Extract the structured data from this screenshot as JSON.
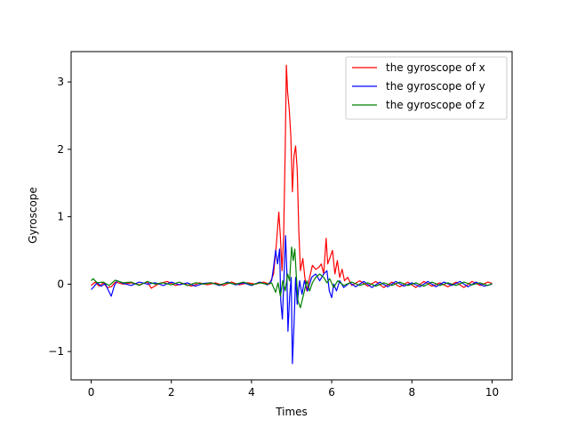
{
  "chart_data": {
    "type": "line",
    "title": "",
    "xlabel": "Times",
    "ylabel": "Gyroscope",
    "xlim": [
      -0.5,
      10.5
    ],
    "ylim": [
      -1.42,
      3.45
    ],
    "xticks": [
      0,
      2,
      4,
      6,
      8,
      10
    ],
    "xtick_labels": [
      "0",
      "2",
      "4",
      "6",
      "8",
      "10"
    ],
    "yticks": [
      -1,
      0,
      1,
      2,
      3
    ],
    "ytick_labels": [
      "−1",
      "0",
      "1",
      "2",
      "3"
    ],
    "grid": false,
    "legend_position": "top-right",
    "series": [
      {
        "name": "the gyroscope of x",
        "color": "#ff0000",
        "points": [
          [
            0.0,
            -0.02
          ],
          [
            0.1,
            0.03
          ],
          [
            0.2,
            -0.03
          ],
          [
            0.3,
            0.02
          ],
          [
            0.4,
            -0.05
          ],
          [
            0.5,
            -0.04
          ],
          [
            0.6,
            0.03
          ],
          [
            0.8,
            0.0
          ],
          [
            1.0,
            0.02
          ],
          [
            1.2,
            -0.01
          ],
          [
            1.4,
            0.03
          ],
          [
            1.5,
            -0.06
          ],
          [
            1.7,
            0.01
          ],
          [
            1.9,
            0.04
          ],
          [
            2.1,
            -0.02
          ],
          [
            2.3,
            0.01
          ],
          [
            2.5,
            -0.03
          ],
          [
            2.7,
            0.02
          ],
          [
            2.9,
            -0.01
          ],
          [
            3.1,
            0.02
          ],
          [
            3.3,
            -0.02
          ],
          [
            3.5,
            0.03
          ],
          [
            3.7,
            -0.01
          ],
          [
            3.9,
            0.02
          ],
          [
            4.1,
            0.0
          ],
          [
            4.3,
            0.03
          ],
          [
            4.45,
            0.0
          ],
          [
            4.55,
            0.15
          ],
          [
            4.62,
            0.6
          ],
          [
            4.68,
            1.07
          ],
          [
            4.72,
            0.7
          ],
          [
            4.76,
            0.2
          ],
          [
            4.8,
            0.7
          ],
          [
            4.84,
            2.0
          ],
          [
            4.87,
            3.25
          ],
          [
            4.9,
            2.85
          ],
          [
            4.94,
            2.6
          ],
          [
            4.98,
            2.2
          ],
          [
            5.02,
            1.37
          ],
          [
            5.06,
            1.9
          ],
          [
            5.1,
            2.05
          ],
          [
            5.14,
            1.7
          ],
          [
            5.18,
            0.8
          ],
          [
            5.22,
            0.2
          ],
          [
            5.28,
            0.38
          ],
          [
            5.33,
            0.1
          ],
          [
            5.38,
            -0.1
          ],
          [
            5.45,
            0.1
          ],
          [
            5.52,
            0.28
          ],
          [
            5.6,
            0.22
          ],
          [
            5.68,
            0.25
          ],
          [
            5.74,
            0.3
          ],
          [
            5.8,
            0.15
          ],
          [
            5.86,
            0.68
          ],
          [
            5.9,
            0.3
          ],
          [
            5.96,
            0.4
          ],
          [
            6.02,
            0.5
          ],
          [
            6.08,
            0.15
          ],
          [
            6.14,
            0.35
          ],
          [
            6.2,
            0.1
          ],
          [
            6.26,
            0.22
          ],
          [
            6.32,
            0.05
          ],
          [
            6.4,
            0.1
          ],
          [
            6.5,
            -0.02
          ],
          [
            6.7,
            0.05
          ],
          [
            6.9,
            -0.03
          ],
          [
            7.1,
            0.04
          ],
          [
            7.3,
            -0.05
          ],
          [
            7.5,
            0.03
          ],
          [
            7.7,
            -0.04
          ],
          [
            7.9,
            0.03
          ],
          [
            8.1,
            -0.05
          ],
          [
            8.3,
            0.04
          ],
          [
            8.5,
            -0.03
          ],
          [
            8.7,
            0.02
          ],
          [
            8.9,
            -0.04
          ],
          [
            9.1,
            0.03
          ],
          [
            9.3,
            -0.05
          ],
          [
            9.5,
            0.04
          ],
          [
            9.7,
            -0.02
          ],
          [
            9.9,
            0.03
          ],
          [
            10.0,
            0.01
          ]
        ]
      },
      {
        "name": "the gyroscope of y",
        "color": "#0000ff",
        "points": [
          [
            0.0,
            -0.08
          ],
          [
            0.05,
            -0.05
          ],
          [
            0.15,
            0.02
          ],
          [
            0.25,
            -0.03
          ],
          [
            0.35,
            0.01
          ],
          [
            0.42,
            -0.08
          ],
          [
            0.5,
            -0.18
          ],
          [
            0.58,
            -0.02
          ],
          [
            0.65,
            0.05
          ],
          [
            0.8,
            0.01
          ],
          [
            1.0,
            -0.02
          ],
          [
            1.2,
            0.03
          ],
          [
            1.4,
            0.0
          ],
          [
            1.6,
            0.02
          ],
          [
            1.8,
            -0.02
          ],
          [
            2.0,
            0.03
          ],
          [
            2.2,
            -0.01
          ],
          [
            2.4,
            0.02
          ],
          [
            2.6,
            -0.03
          ],
          [
            2.8,
            0.01
          ],
          [
            3.0,
            0.02
          ],
          [
            3.2,
            -0.02
          ],
          [
            3.4,
            0.03
          ],
          [
            3.6,
            -0.01
          ],
          [
            3.8,
            0.02
          ],
          [
            4.0,
            -0.02
          ],
          [
            4.2,
            0.03
          ],
          [
            4.4,
            -0.01
          ],
          [
            4.5,
            0.05
          ],
          [
            4.55,
            0.25
          ],
          [
            4.6,
            0.5
          ],
          [
            4.65,
            0.3
          ],
          [
            4.7,
            0.52
          ],
          [
            4.73,
            -0.25
          ],
          [
            4.77,
            -0.52
          ],
          [
            4.81,
            0.1
          ],
          [
            4.85,
            0.72
          ],
          [
            4.88,
            0.2
          ],
          [
            4.91,
            -0.7
          ],
          [
            4.95,
            -0.2
          ],
          [
            4.99,
            0.1
          ],
          [
            5.02,
            -1.18
          ],
          [
            5.06,
            -0.6
          ],
          [
            5.1,
            0.1
          ],
          [
            5.14,
            -0.3
          ],
          [
            5.2,
            0.05
          ],
          [
            5.26,
            -0.15
          ],
          [
            5.32,
            0.05
          ],
          [
            5.4,
            -0.1
          ],
          [
            5.5,
            0.1
          ],
          [
            5.6,
            0.15
          ],
          [
            5.7,
            0.05
          ],
          [
            5.8,
            0.15
          ],
          [
            5.88,
            0.2
          ],
          [
            5.94,
            -0.1
          ],
          [
            6.0,
            -0.2
          ],
          [
            6.05,
            0.0
          ],
          [
            6.12,
            -0.1
          ],
          [
            6.2,
            0.05
          ],
          [
            6.3,
            -0.05
          ],
          [
            6.45,
            0.02
          ],
          [
            6.6,
            -0.04
          ],
          [
            6.8,
            0.04
          ],
          [
            7.0,
            -0.05
          ],
          [
            7.2,
            0.03
          ],
          [
            7.4,
            -0.04
          ],
          [
            7.6,
            0.04
          ],
          [
            7.8,
            -0.03
          ],
          [
            8.0,
            0.02
          ],
          [
            8.2,
            -0.04
          ],
          [
            8.4,
            0.04
          ],
          [
            8.6,
            -0.04
          ],
          [
            8.8,
            0.03
          ],
          [
            9.0,
            -0.02
          ],
          [
            9.2,
            0.04
          ],
          [
            9.4,
            -0.04
          ],
          [
            9.6,
            0.03
          ],
          [
            9.8,
            -0.03
          ],
          [
            10.0,
            0.0
          ]
        ]
      },
      {
        "name": "the gyroscope of z",
        "color": "#008000",
        "points": [
          [
            0.0,
            0.05
          ],
          [
            0.05,
            0.08
          ],
          [
            0.15,
            0.02
          ],
          [
            0.3,
            0.03
          ],
          [
            0.45,
            -0.02
          ],
          [
            0.6,
            0.06
          ],
          [
            0.8,
            0.02
          ],
          [
            1.0,
            0.03
          ],
          [
            1.2,
            -0.02
          ],
          [
            1.4,
            0.04
          ],
          [
            1.6,
            0.0
          ],
          [
            1.8,
            0.02
          ],
          [
            2.0,
            -0.01
          ],
          [
            2.2,
            0.03
          ],
          [
            2.4,
            -0.02
          ],
          [
            2.6,
            0.02
          ],
          [
            2.8,
            0.0
          ],
          [
            3.0,
            0.02
          ],
          [
            3.2,
            -0.01
          ],
          [
            3.4,
            0.02
          ],
          [
            3.6,
            0.0
          ],
          [
            3.8,
            0.03
          ],
          [
            4.0,
            -0.01
          ],
          [
            4.2,
            0.02
          ],
          [
            4.4,
            0.0
          ],
          [
            4.5,
            0.02
          ],
          [
            4.55,
            -0.05
          ],
          [
            4.6,
            -0.12
          ],
          [
            4.66,
            0.02
          ],
          [
            4.72,
            -0.18
          ],
          [
            4.78,
            0.05
          ],
          [
            4.84,
            -0.1
          ],
          [
            4.9,
            0.15
          ],
          [
            4.95,
            0.05
          ],
          [
            5.0,
            0.55
          ],
          [
            5.04,
            0.35
          ],
          [
            5.08,
            0.52
          ],
          [
            5.12,
            0.1
          ],
          [
            5.16,
            -0.25
          ],
          [
            5.22,
            -0.35
          ],
          [
            5.3,
            -0.15
          ],
          [
            5.38,
            0.05
          ],
          [
            5.45,
            -0.1
          ],
          [
            5.52,
            0.02
          ],
          [
            5.6,
            0.1
          ],
          [
            5.7,
            0.15
          ],
          [
            5.8,
            0.1
          ],
          [
            5.88,
            0.02
          ],
          [
            5.95,
            0.08
          ],
          [
            6.05,
            -0.05
          ],
          [
            6.15,
            0.05
          ],
          [
            6.3,
            -0.02
          ],
          [
            6.5,
            0.03
          ],
          [
            6.7,
            -0.02
          ],
          [
            6.9,
            0.02
          ],
          [
            7.1,
            -0.03
          ],
          [
            7.3,
            0.02
          ],
          [
            7.5,
            -0.02
          ],
          [
            7.7,
            0.03
          ],
          [
            7.9,
            -0.02
          ],
          [
            8.1,
            0.02
          ],
          [
            8.3,
            -0.03
          ],
          [
            8.5,
            0.03
          ],
          [
            8.7,
            -0.02
          ],
          [
            8.9,
            0.02
          ],
          [
            9.1,
            -0.02
          ],
          [
            9.3,
            0.03
          ],
          [
            9.5,
            -0.01
          ],
          [
            9.7,
            0.02
          ],
          [
            9.9,
            -0.02
          ],
          [
            10.0,
            0.01
          ]
        ]
      }
    ]
  }
}
